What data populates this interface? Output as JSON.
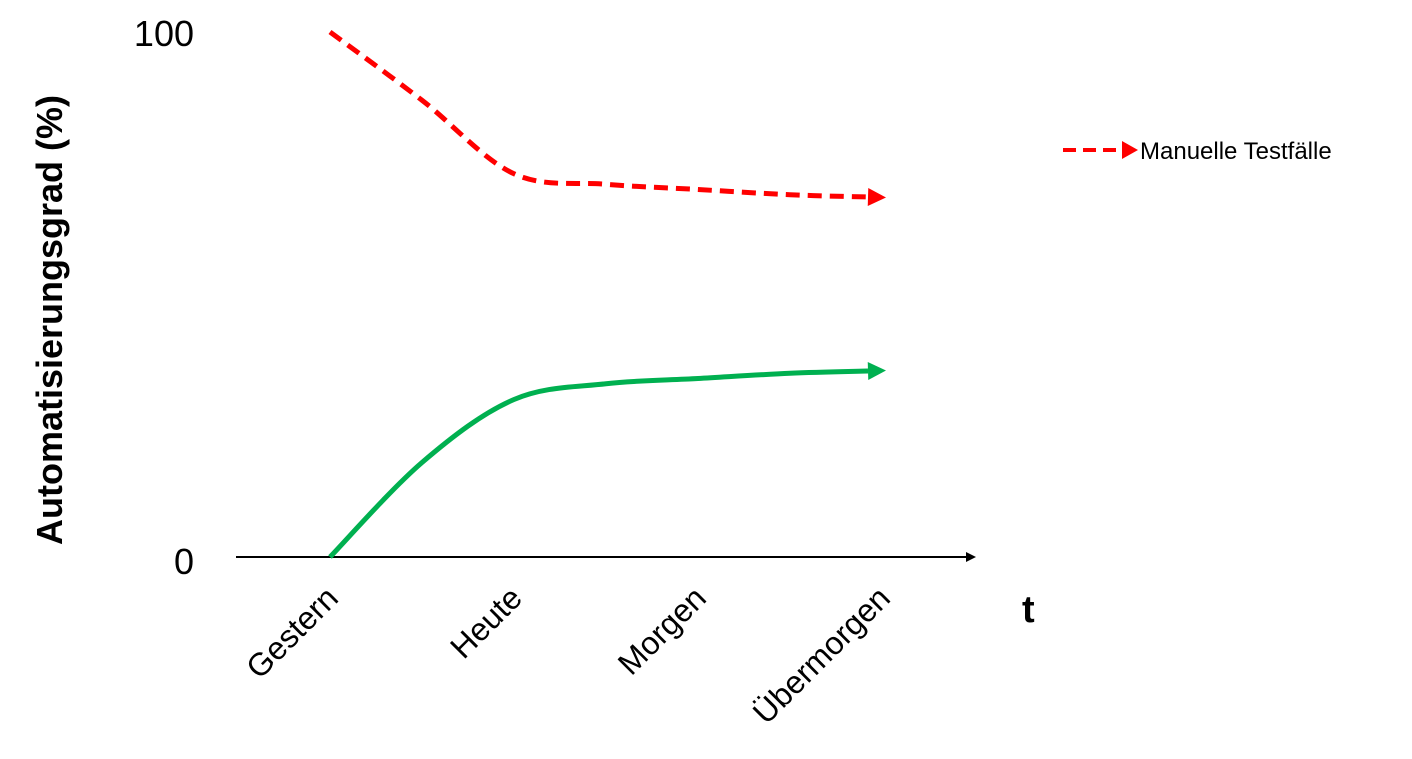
{
  "chart_data": {
    "type": "line",
    "ylabel": "Automatisierungsgrad (%)",
    "xlabel": "t",
    "categories": [
      "Gestern",
      "Heute",
      "Morgen",
      "Übermorgen"
    ],
    "ylim": [
      0,
      100
    ],
    "yticks": [
      "0",
      "100"
    ],
    "grid": false,
    "legend_position": "top-right",
    "series": [
      {
        "name": "Manuelle Testfälle",
        "color": "#ff0000",
        "style": "dashed",
        "x": [
          0,
          0.5,
          1,
          1.5,
          2,
          2.5,
          3
        ],
        "values": [
          100,
          87,
          73,
          71,
          70,
          69,
          68.5
        ]
      },
      {
        "name": "",
        "color": "#00b050",
        "style": "solid",
        "x": [
          0,
          0.5,
          1,
          1.5,
          2,
          2.5,
          3
        ],
        "values": [
          0,
          18,
          30,
          33,
          34,
          35,
          35.5
        ]
      }
    ]
  }
}
